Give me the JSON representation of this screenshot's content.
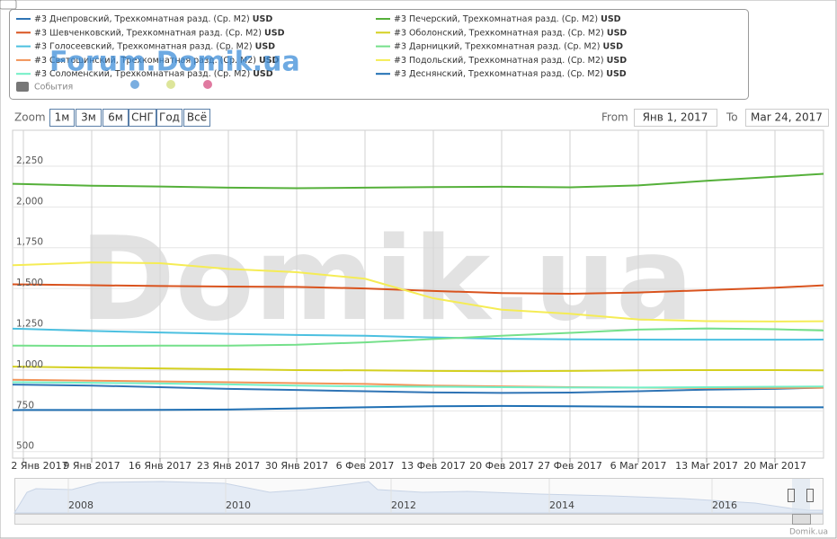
{
  "chart_data": {
    "type": "line",
    "watermark": "Domik.ua",
    "watermark_small": "Forum.Domik.ua",
    "events_label": "События",
    "zoom_label": "Zoom",
    "zoom_buttons": [
      "1м",
      "3м",
      "6м",
      "СНГ",
      "Год",
      "Всё"
    ],
    "from_label": "From",
    "from_value": "Янв 1, 2017",
    "to_label": "To",
    "to_value": "Mar 24, 2017",
    "credit": "Domik.ua",
    "navigator_years": [
      "2008",
      "2010",
      "2012",
      "2014",
      "2016"
    ],
    "categories": [
      null,
      "2 Янв 2017",
      "9 Янв 2017",
      "16 Янв 2017",
      "23 Янв 2017",
      "30 Янв 2017",
      "6 Фев 2017",
      "13 Фев 2017",
      "20 Фев 2017",
      "27 Фев 2017",
      "6 Mar 2017",
      "13 Mar 2017",
      "20 Mar 2017",
      null
    ],
    "ylim": [
      460,
      2470
    ],
    "yticks": [
      500,
      {
        "value": 750,
        "label": "750"
      },
      {
        "value": 1000,
        "label": "1,000"
      },
      {
        "value": 1250,
        "label": "1,250"
      },
      {
        "value": 1500,
        "label": "1,500"
      },
      {
        "value": 1750,
        "label": "1,750"
      },
      {
        "value": 2000,
        "label": "2,000"
      },
      {
        "value": 2250,
        "label": "2,250"
      }
    ],
    "grid": true,
    "series": [
      {
        "name": "#3 Днепровский, Трехкомнатная разд. (Ср. M2)",
        "unit": "USD",
        "color": "#2f74b5",
        "values": [
          915,
          910,
          905,
          895,
          885,
          878,
          870,
          863,
          860,
          862,
          870,
          880,
          885,
          895
        ]
      },
      {
        "name": "#3 Шевченковский, Трехкомнатная разд. (Ср. M2)",
        "unit": "USD",
        "color": "#d9531e",
        "values": [
          1528,
          1525,
          1520,
          1515,
          1512,
          1510,
          1500,
          1485,
          1472,
          1468,
          1475,
          1490,
          1505,
          1525
        ]
      },
      {
        "name": "#3 Голосеевский, Трехкомнатная разд. (Ср. M2)",
        "unit": "USD",
        "color": "#4cc0e0",
        "values": [
          1262,
          1252,
          1240,
          1230,
          1222,
          1215,
          1210,
          1200,
          1192,
          1188,
          1187,
          1186,
          1186,
          1187
        ]
      },
      {
        "name": "#3 Святошинский, Трехкомнатная разд. (Ср. M2)",
        "unit": "USD",
        "color": "#f29458",
        "values": [
          945,
          940,
          935,
          930,
          925,
          920,
          915,
          905,
          900,
          895,
          892,
          890,
          890,
          892
        ]
      },
      {
        "name": "#3 Соломенский, Трехкомнатная разд. (Ср. M2)",
        "unit": "USD",
        "color": "#72efc6",
        "values": [
          928,
          925,
          922,
          918,
          912,
          905,
          900,
          898,
          895,
          893,
          893,
          895,
          898,
          900
        ]
      },
      {
        "name": "#3 Печерский, Трехкомнатная разд. (Ср. M2)",
        "unit": "USD",
        "color": "#55b03a",
        "values": [
          2150,
          2140,
          2130,
          2125,
          2118,
          2115,
          2118,
          2122,
          2124,
          2120,
          2132,
          2160,
          2185,
          2210
        ]
      },
      {
        "name": "#3 Оболонский, Трехкомнатная разд. (Ср. M2)",
        "unit": "USD",
        "color": "#d4d020",
        "values": [
          1025,
          1020,
          1015,
          1010,
          1005,
          1000,
          998,
          995,
          993,
          995,
          998,
          1000,
          1000,
          998
        ]
      },
      {
        "name": "#3 Дарницкий, Трехкомнатная разд. (Ср. M2)",
        "unit": "USD",
        "color": "#74e08a",
        "values": [
          1150,
          1150,
          1148,
          1150,
          1150,
          1155,
          1170,
          1190,
          1210,
          1228,
          1248,
          1255,
          1250,
          1240
        ]
      },
      {
        "name": "#3 Подольский, Трехкомнатная разд. (Ср. M2)",
        "unit": "USD",
        "color": "#f5ec55",
        "values": [
          1630,
          1645,
          1660,
          1655,
          1620,
          1600,
          1560,
          1440,
          1370,
          1345,
          1310,
          1300,
          1298,
          1300
        ]
      },
      {
        "name": "#3 Деснянский, Трехкомнатная разд. (Ср. M2)",
        "unit": "USD",
        "color": "#1f6fb3",
        "values": [
          752,
          755,
          755,
          756,
          758,
          765,
          772,
          778,
          780,
          778,
          775,
          773,
          772,
          772
        ]
      }
    ]
  }
}
